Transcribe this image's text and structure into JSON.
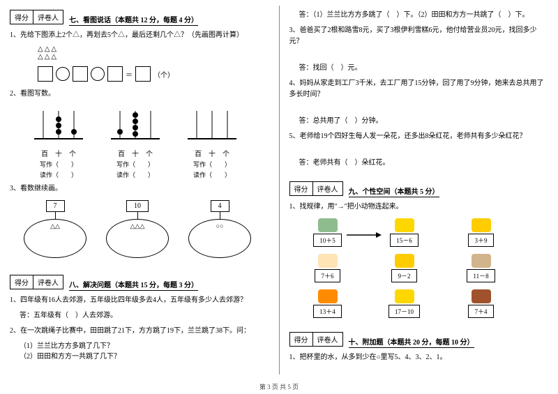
{
  "scorebox": {
    "score": "得分",
    "grader": "评卷人"
  },
  "sec7": {
    "title": "七、看图说话（本题共 12 分，每题 4 分）",
    "q1": "1、先给下图添上2个△，再划去5个△，最后还剩几个△？（先画图再计算）",
    "q1_unit": "（个）",
    "q2": "2、看图写数。",
    "abacus_header": "百　十　个",
    "write": "写作（　　）",
    "read": "读作（　　）",
    "q3": "3、看数继续画。",
    "ov1_num": "7",
    "ov1_shapes": "△△",
    "ov2_num": "10",
    "ov2_shapes": "△△△",
    "ov3_num": "4",
    "ov3_shapes": "○○"
  },
  "sec8": {
    "title": "八、解决问题（本题共 15 分，每题 3 分）",
    "q1": "1、四年级有16人去郊游，五年级比四年级多去4人，五年级有多少人去郊游？",
    "a1": "答：五年级有（　）人去郊游。",
    "q2": "2、在一次跳绳子比赛中，田田跳了21下，方方跳了19下，兰兰跳了38下。问：",
    "q2a": "（1）兰兰比方方多跳了几下？",
    "q2b": "（2）田田和方方一共跳了几下？",
    "a2": "答：（1）兰兰比方方多跳了（　）下。（2）田田和方方一共跳了（　）下。",
    "q3": "3、爸爸买了2根和路雪8元，买了3根伊利雪糕6元，他付给营业员20元，找回多少元？",
    "a3": "答：找回（　）元。",
    "q4": "4、妈妈从家走到工厂3千米，去工厂用了15分钟，回了用了9分钟，她来去总共用了多长时间？",
    "a4": "答：总共用了（　）分钟。",
    "q5": "5、老师给19个四好生每人发一朵花，还多出8朵红花，老师共有多少朵红花？",
    "a5": "答：老师共有（　）朵红花。"
  },
  "sec9": {
    "title": "九、个性空间（本题共 5 分）",
    "q1": "1、找规律，用\"→\"把小动物连起来。",
    "items": [
      {
        "c": "#8fbc8f",
        "e": "10＋5"
      },
      {
        "c": "#ffd700",
        "e": "15－6"
      },
      {
        "c": "#ffcc00",
        "e": "3＋9"
      },
      {
        "c": "#ffe4b5",
        "e": "7＋6"
      },
      {
        "c": "#ffcc00",
        "e": "9－2"
      },
      {
        "c": "#d2b48c",
        "e": "11－8"
      },
      {
        "c": "#ff8c00",
        "e": "13＋4"
      },
      {
        "c": "#ffd700",
        "e": "17－10"
      },
      {
        "c": "#a0522d",
        "e": "7＋4"
      }
    ]
  },
  "sec10": {
    "title": "十、附加题（本题共 20 分，每题 10 分）",
    "q1": "1、把杯里的水，从多到少在○里写5、4、3、2、1。"
  },
  "footer": "第 3 页 共 5 页"
}
